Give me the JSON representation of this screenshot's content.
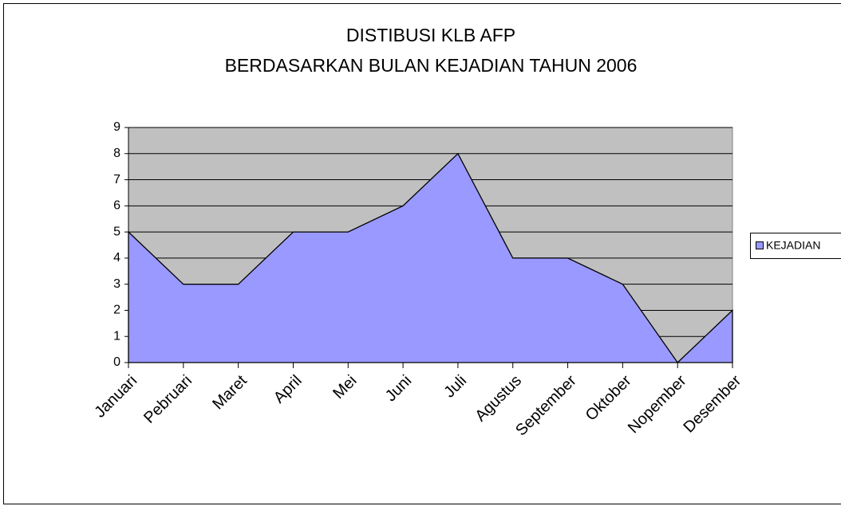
{
  "chart_data": {
    "type": "area",
    "title": [
      "DISTIBUSI KLB AFP",
      "BERDASARKAN BULAN KEJADIAN TAHUN 2006"
    ],
    "categories": [
      "Januari",
      "Pebruari",
      "Maret",
      "April",
      "Mei",
      "Juni",
      "Juli",
      "Agustus",
      "September",
      "Oktober",
      "Nopember",
      "Desember"
    ],
    "series": [
      {
        "name": "KEJADIAN",
        "color": "#9999ff",
        "values": [
          5,
          3,
          3,
          5,
          5,
          6,
          8,
          4,
          4,
          3,
          0,
          2
        ]
      }
    ],
    "ylim": [
      0,
      9
    ],
    "yticks": [
      0,
      1,
      2,
      3,
      4,
      5,
      6,
      7,
      8,
      9
    ],
    "grid": true,
    "legend": "right"
  }
}
